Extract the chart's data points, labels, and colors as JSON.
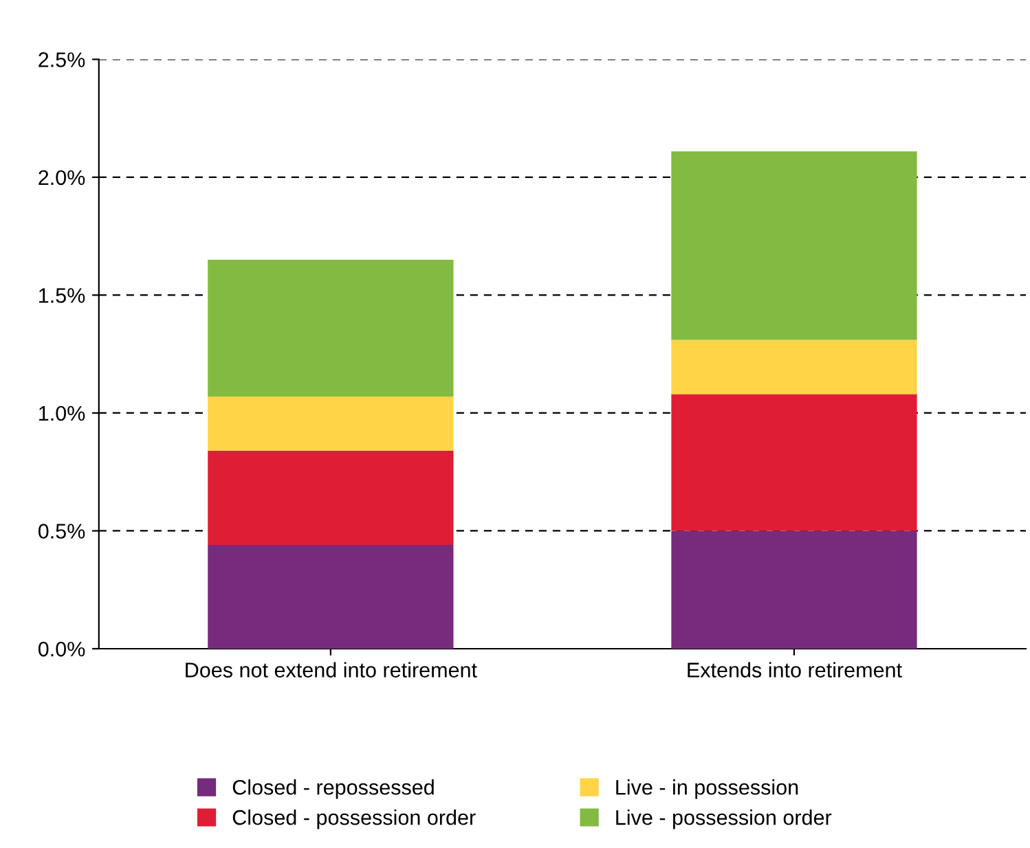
{
  "chart_data": {
    "type": "bar",
    "stacked": true,
    "categories": [
      "Does not extend into retirement",
      "Extends into retirement"
    ],
    "series": [
      {
        "name": "Closed - repossessed",
        "color": "#772b7d",
        "values": [
          0.44,
          0.5
        ]
      },
      {
        "name": "Closed - possession order",
        "color": "#df1e35",
        "values": [
          0.4,
          0.58
        ]
      },
      {
        "name": "Live - in possession",
        "color": "#ffd447",
        "values": [
          0.23,
          0.23
        ]
      },
      {
        "name": "Live - possession order",
        "color": "#83ba41",
        "values": [
          0.58,
          0.8
        ]
      }
    ],
    "ylim": [
      0,
      2.5
    ],
    "yticks": [
      {
        "value": 0,
        "label": "0.0%"
      },
      {
        "value": 0.5,
        "label": "0.5%"
      },
      {
        "value": 1.0,
        "label": "1.0%"
      },
      {
        "value": 1.5,
        "label": "1.5%"
      },
      {
        "value": 2.0,
        "label": "2.0%"
      },
      {
        "value": 2.5,
        "label": "2.5%"
      }
    ],
    "grid": "y",
    "legend": "bottom"
  }
}
